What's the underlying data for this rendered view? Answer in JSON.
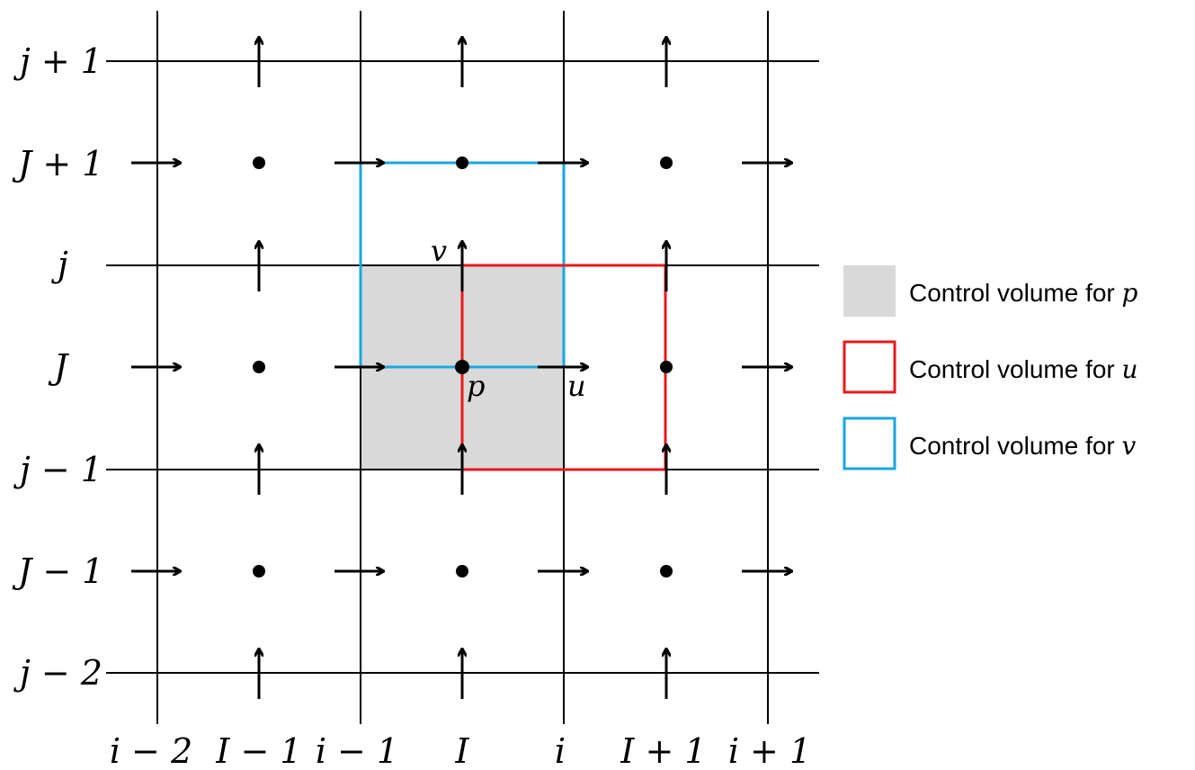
{
  "row_labels": {
    "j_plus_1": "j + 1",
    "J_plus_1": "J + 1",
    "j": "j",
    "J": "J",
    "j_minus_1": "j − 1",
    "J_minus_1": "J − 1",
    "j_minus_2": "j − 2"
  },
  "column_labels": {
    "i_minus_2": "i − 2",
    "I_minus_1": "I − 1",
    "i_minus_1": "i − 1",
    "I": "I",
    "i": "i",
    "I_plus_1": "I + 1",
    "i_plus_1": "i + 1"
  },
  "point_labels": {
    "v": "v",
    "p": "p",
    "u": "u"
  },
  "legend": {
    "p_text": "Control volume for ",
    "p_var": "p",
    "u_text": "Control volume for ",
    "u_var": "u",
    "v_text": "Control volume for ",
    "v_var": "v"
  },
  "colors": {
    "grid": "#000000",
    "p_fill": "#d9d9d9",
    "u_volume": "#e8191c",
    "v_volume": "#1aa6e0"
  }
}
